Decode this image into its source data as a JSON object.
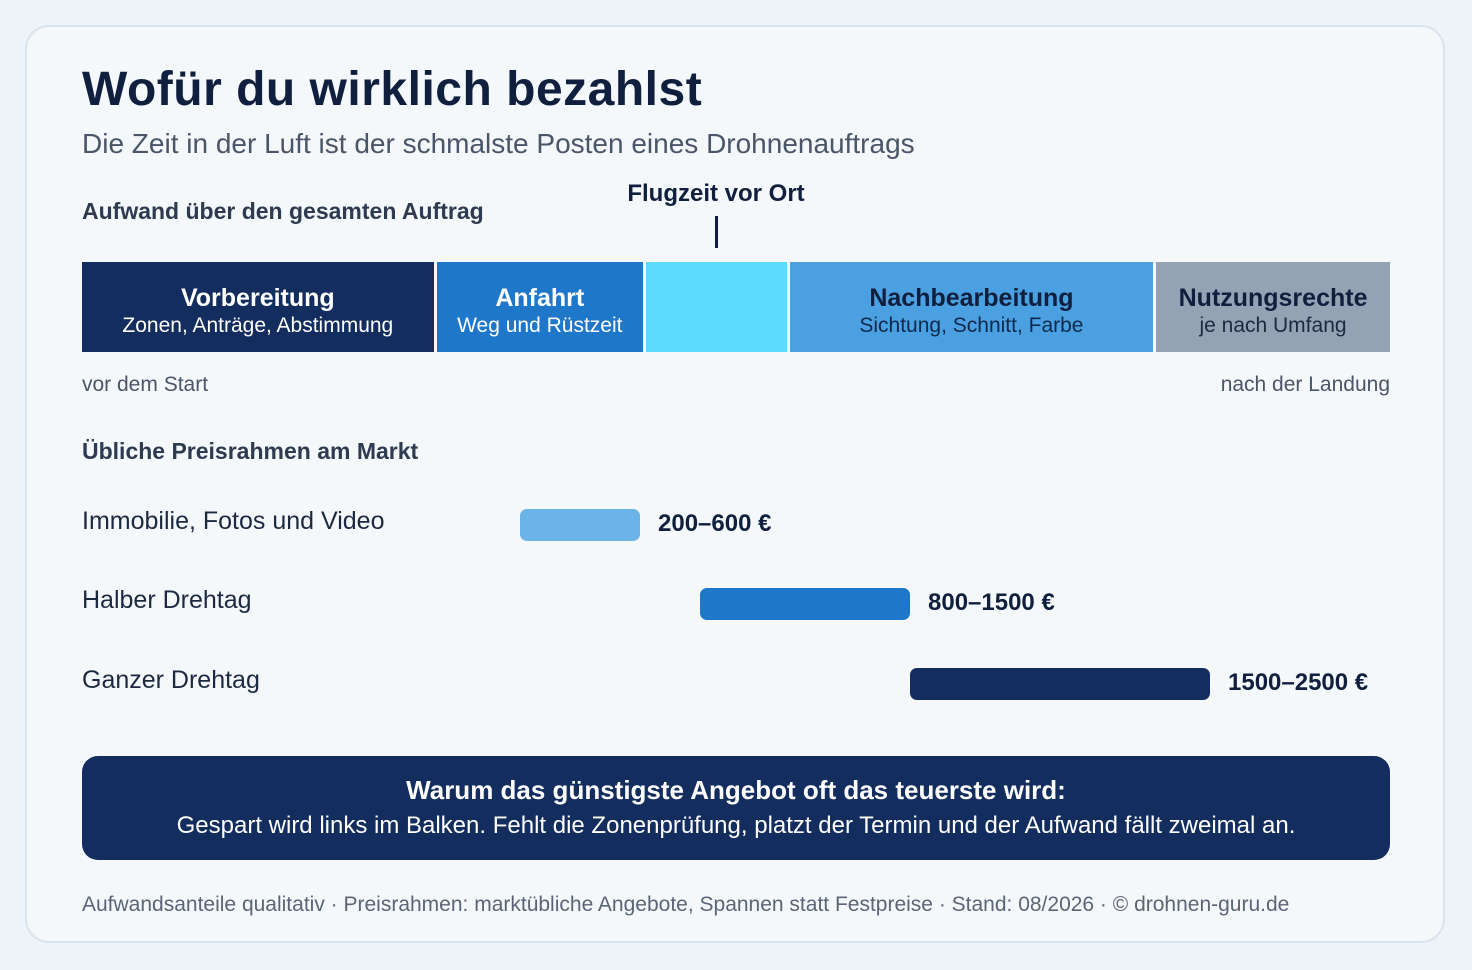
{
  "title": "Wofür du wirklich bezahlst",
  "subtitle": "Die Zeit in der Luft ist der schmalste Posten eines Drohnenauftrags",
  "effort_section": {
    "label": "Aufwand über den gesamten Auftrag",
    "highlight_label": "Flugzeit vor Ort",
    "start_label": "vor dem Start",
    "end_label": "nach der Landung"
  },
  "price_section": {
    "label": "Übliche Preisrahmen am Markt"
  },
  "callout": {
    "title": "Warum das günstigste Angebot oft das teuerste wird:",
    "text": "Gespart wird links im Balken. Fehlt die Zonenprüfung, platzt der Termin und der Aufwand fällt zweimal an."
  },
  "footer": "Aufwandsanteile qualitativ · Preisrahmen: marktübliche Angebote, Spannen statt Festpreise · Stand: 08/2026 · © drohnen-guru.de",
  "chart_data": [
    {
      "type": "bar",
      "orientation": "horizontal-stacked",
      "title": "Aufwand über den gesamten Auftrag",
      "segments": [
        {
          "name": "Vorbereitung",
          "sub": "Zonen, Anträge, Abstimmung",
          "share": 0.27,
          "color": "#132d5e",
          "text_color": "#ffffff",
          "sub_color": "#ffffff"
        },
        {
          "name": "Anfahrt",
          "sub": "Weg und Rüstzeit",
          "share": 0.16,
          "color": "#1f77c9",
          "text_color": "#ffffff",
          "sub_color": "#ffffff"
        },
        {
          "name": "",
          "sub": "",
          "share": 0.11,
          "color": "#5cdcfc",
          "text_color": "#0f1f3d",
          "sub_color": "#0f1f3d"
        },
        {
          "name": "Nachbearbeitung",
          "sub": "Sichtung, Schnitt, Farbe",
          "share": 0.28,
          "color": "#4aa0e0",
          "text_color": "#0f1f3d",
          "sub_color": "#0f2a4d"
        },
        {
          "name": "Nutzungsrechte",
          "sub": "je nach Umfang",
          "share": 0.18,
          "color": "#94a3b4",
          "text_color": "#0f1f3d",
          "sub_color": "#1c2940"
        }
      ]
    },
    {
      "type": "bar",
      "orientation": "horizontal-range",
      "title": "Übliche Preisrahmen am Markt",
      "unit": "€",
      "xlim": [
        0,
        2900
      ],
      "rows": [
        {
          "label": "Immobilie, Fotos und Video",
          "min": 200,
          "max": 600,
          "value_label": "200–600 €",
          "color": "#6bb4e8"
        },
        {
          "label": "Halber Drehtag",
          "min": 800,
          "max": 1500,
          "value_label": "800–1500 €",
          "color": "#1f77c9"
        },
        {
          "label": "Ganzer Drehtag",
          "min": 1500,
          "max": 2500,
          "value_label": "1500–2500 €",
          "color": "#132d5e"
        }
      ]
    }
  ]
}
